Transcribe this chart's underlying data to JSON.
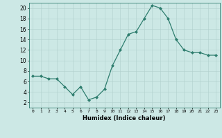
{
  "x": [
    0,
    1,
    2,
    3,
    4,
    5,
    6,
    7,
    8,
    9,
    10,
    11,
    12,
    13,
    14,
    15,
    16,
    17,
    18,
    19,
    20,
    21,
    22,
    23
  ],
  "y": [
    7.0,
    7.0,
    6.5,
    6.5,
    5.0,
    3.5,
    5.0,
    2.5,
    3.0,
    4.5,
    9.0,
    12.0,
    15.0,
    15.5,
    18.0,
    20.5,
    20.0,
    18.0,
    14.0,
    12.0,
    11.5,
    11.5,
    11.0,
    11.0
  ],
  "xlabel": "Humidex (Indice chaleur)",
  "xlim": [
    -0.5,
    23.5
  ],
  "ylim": [
    1,
    21
  ],
  "yticks": [
    2,
    4,
    6,
    8,
    10,
    12,
    14,
    16,
    18,
    20
  ],
  "xticks": [
    0,
    1,
    2,
    3,
    4,
    5,
    6,
    7,
    8,
    9,
    10,
    11,
    12,
    13,
    14,
    15,
    16,
    17,
    18,
    19,
    20,
    21,
    22,
    23
  ],
  "xtick_labels": [
    "0",
    "1",
    "2",
    "3",
    "4",
    "5",
    "6",
    "7",
    "8",
    "9",
    "10",
    "11",
    "12",
    "13",
    "14",
    "15",
    "16",
    "17",
    "18",
    "19",
    "20",
    "21",
    "22",
    "23"
  ],
  "line_color": "#2e7d6e",
  "marker_color": "#2e7d6e",
  "bg_color": "#cce8e5",
  "grid_color": "#b0d0cc",
  "axis_color": "#2e7d6e"
}
